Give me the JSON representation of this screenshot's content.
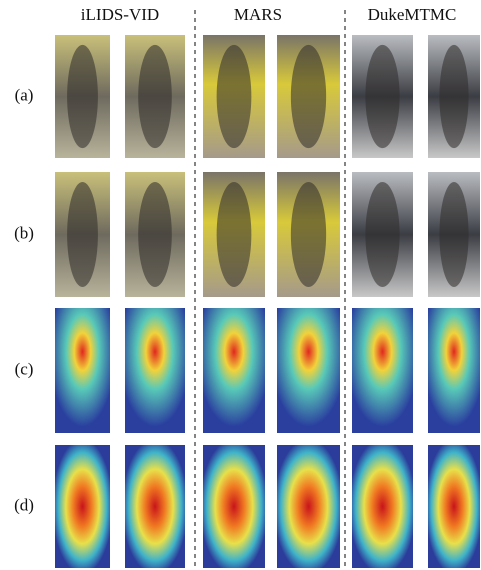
{
  "header": {
    "columns": [
      "iLIDS-VID",
      "MARS",
      "DukeMTMC"
    ]
  },
  "rows": [
    "(a)",
    "(b)",
    "(c)",
    "(d)"
  ]
}
